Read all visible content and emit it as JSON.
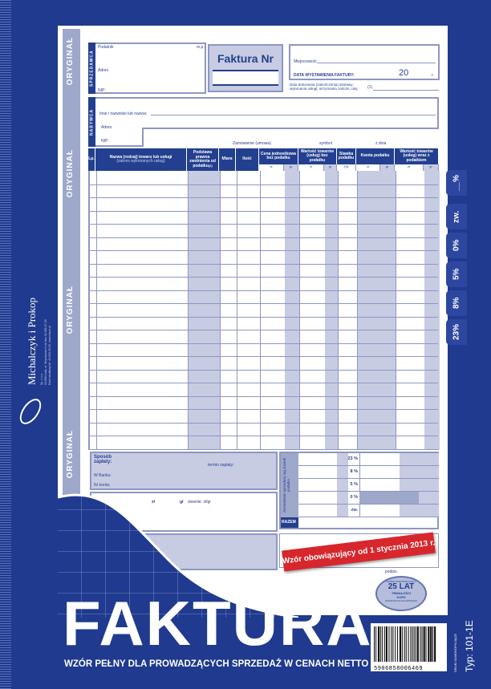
{
  "brand": {
    "name": "Michalczyk i Prokop",
    "address_lines": [
      "Sp. z o.o.",
      "93-588 Łódź, ul. Strycharska 9, tel./fax 42-682-07-20",
      "Dział handlowy tel. 42-640-33-00, www.mipro.pl"
    ]
  },
  "side_label": "ORYGINAŁ",
  "seller": {
    "section": "SPRZEDAWCA",
    "taxpayer": "Podatnik",
    "mp": "m.p.",
    "address": "Adres",
    "nip": "NIP:"
  },
  "invoice_title": "Faktura Nr",
  "place": {
    "city": "Miejscowość:",
    "date_label": "DATA WYSTAWIENIA FAKTURY:",
    "year_prefix": "20",
    "year_suffix": "r.",
    "delivery_date": "Data dokonania (zakończenia) dostawy; wykonania usługi; otrzymania zaliczki, raty,",
    "footnote": "(1)"
  },
  "buyer": {
    "section": "NABYWCA",
    "name": "Imię i nazwisko lub nazwa:",
    "address": "Adres:",
    "nip": "NIP:",
    "order": "Zamówienie (umowa)",
    "symbol": "symbol",
    "date": "z dnia"
  },
  "table": {
    "headers": [
      "Lp.",
      "Nazwa (rodzaj) towaru lub usługi",
      "Podstawa prawna zwolnienia od podatku",
      "Miara",
      "Ilość",
      "Cena jednostkowa bez podatku",
      "Wartość towarów (usług) bez podatku",
      "Stawka podatku",
      "Kwota podatku",
      "Wartość towarów (usług) wraz z podatkiem"
    ],
    "name_sub": "(zakres wykonanych usług)",
    "footnote": "(2)",
    "zl": "zł",
    "gr": "gr",
    "percent": "[%]"
  },
  "payment": {
    "method": "Sposób zapłaty:",
    "due": "termin zapłaty:",
    "bank": "W Banku:",
    "account": "Nr konta:",
    "zl": "zł",
    "gr": "gr",
    "words": "słownie: zł/gr"
  },
  "summary": {
    "label": "Zestawienie sprzedaży wg stawek podatku",
    "rates": [
      "23 %",
      "8 %",
      "5 %",
      "0 %",
      "zw."
    ],
    "total": "RAZEM",
    "signature": "podpis"
  },
  "ribbon": "Wzór obowiązujący od 1 stycznia 2013 r.",
  "stamp": {
    "top": "PAPIER SAMOKOPIUJĄCY",
    "main": "25 LAT",
    "sub": "TRWAŁOŚCI KOPII",
    "bottom": "GWARANCJA ZACHOWANIA"
  },
  "vat_tabs": [
    "23%",
    "8%",
    "5%",
    "0%",
    "zw.",
    "__%"
  ],
  "product": {
    "title": "FAKTURA",
    "subtitle": "WZÓR PEŁNY DLA PROWADZĄCYCH SPRZEDAŻ W CENACH NETTO",
    "barcode": "5906858006469",
    "type": "Typ: 101-1E",
    "category": "DRUKI SAMOKOPIUJĄCE"
  },
  "colors": {
    "background": "#1f3a8e",
    "header": "#233f8f",
    "shade": "#c7cce3",
    "ribbon": "#d8262d"
  }
}
